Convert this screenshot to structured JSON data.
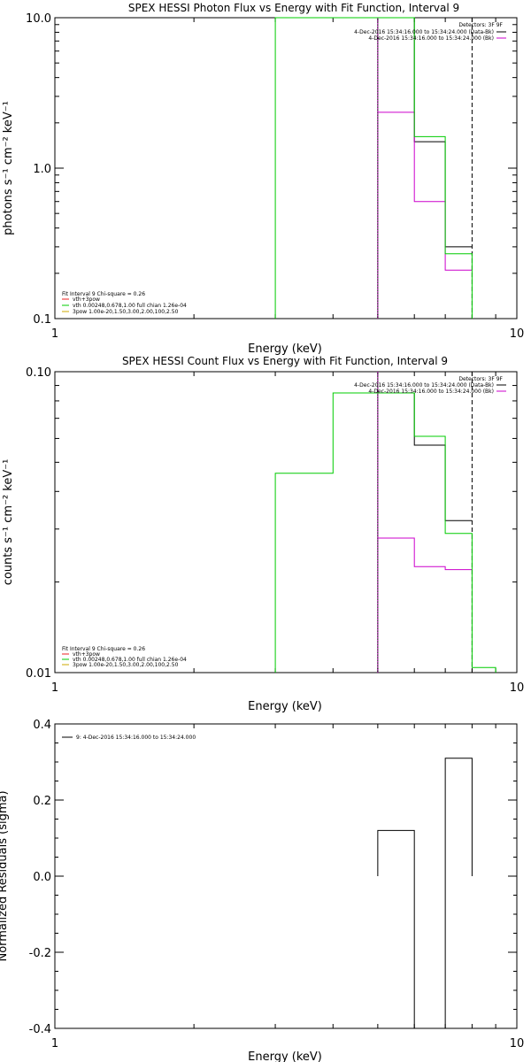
{
  "chart_data": [
    {
      "type": "line",
      "title": "SPEX HESSI Photon Flux vs Energy with Fit Function, Interval 9",
      "xlabel": "Energy (keV)",
      "ylabel": "photons s⁻¹ cm⁻² keV⁻¹",
      "xlog": true,
      "ylog": true,
      "xlim": [
        1,
        10
      ],
      "ylim": [
        0.1,
        10
      ],
      "xticks": [
        {
          "v": 1,
          "label": "1"
        },
        {
          "v": 10,
          "label": "10"
        }
      ],
      "yticks": [
        {
          "v": 0.1,
          "label": "0.1"
        },
        {
          "v": 1,
          "label": "1.0"
        },
        {
          "v": 10,
          "label": "10.0"
        }
      ],
      "header": {
        "detectors": "Detectors: 3F 9F",
        "lines": [
          {
            "text": "4-Dec-2016 15:34:16.000 to 15:34:24.000 (Data-Bk)",
            "color": "#000000"
          },
          {
            "text": "4-Dec-2016 15:34:16.000 to 15:34:24.000 (Bk)",
            "color": "#cc00cc"
          }
        ]
      },
      "fit_legend": {
        "title": "Fit Interval 9   Chi-square = 0.26",
        "entries": [
          {
            "text": "vth+3pow",
            "color": "#ee2222"
          },
          {
            "text": "vth 0.00248,0.678,1.00  full chian 1.26e-04",
            "color": "#00cc00"
          },
          {
            "text": "3pow 1.00e-20,1.50,3.00,2.00,100,2.50",
            "color": "#ccaa00"
          }
        ]
      },
      "series": [
        {
          "color": "#000000",
          "style": "solid",
          "x": [
            5.0,
            6.0,
            6.0,
            7.0,
            7.0,
            8.0
          ],
          "y": [
            10,
            10,
            1.5,
            1.5,
            0.3,
            0.3
          ]
        },
        {
          "color": "#cc00cc",
          "style": "solid",
          "x": [
            5.0,
            6.0,
            6.0,
            7.0,
            7.0,
            8.0
          ],
          "y": [
            2.35,
            2.35,
            0.6,
            0.6,
            0.21,
            0.21
          ]
        },
        {
          "color": "#00cc00",
          "style": "solid",
          "x": [
            3.0,
            3.0,
            5.0,
            6.0,
            6.0,
            7.0,
            7.0,
            8.0,
            8.0
          ],
          "y": [
            0.1,
            10,
            10,
            10,
            1.62,
            1.62,
            0.27,
            0.27,
            0.1
          ]
        }
      ],
      "vlines": [
        {
          "x": 5.0,
          "color": "#000000",
          "style": "solid"
        },
        {
          "x": 5.0,
          "color": "#cc00cc",
          "style": "dotted"
        },
        {
          "x": 8.0,
          "color": "#000000",
          "style": "dashed"
        }
      ]
    },
    {
      "type": "line",
      "title": "SPEX HESSI Count Flux vs Energy with Fit Function, Interval 9",
      "xlabel": "Energy (keV)",
      "ylabel": "counts s⁻¹ cm⁻² keV⁻¹",
      "xlog": true,
      "ylog": true,
      "xlim": [
        1,
        10
      ],
      "ylim": [
        0.01,
        0.1
      ],
      "xticks": [
        {
          "v": 1,
          "label": "1"
        },
        {
          "v": 10,
          "label": "10"
        }
      ],
      "yticks": [
        {
          "v": 0.01,
          "label": "0.01"
        },
        {
          "v": 0.1,
          "label": "0.10"
        }
      ],
      "header": {
        "detectors": "Detectors: 3F 9F",
        "lines": [
          {
            "text": "4-Dec-2016 15:34:16.000 to 15:34:24.000 (Data-Bk)",
            "color": "#000000"
          },
          {
            "text": "4-Dec-2016 15:34:16.000 to 15:34:24.000 (Bk)",
            "color": "#cc00cc"
          }
        ]
      },
      "fit_legend": {
        "title": "Fit Interval 9   Chi-square = 0.26",
        "entries": [
          {
            "text": "vth+3pow",
            "color": "#ee2222"
          },
          {
            "text": "vth 0.00248,0.678,1.00  full chian 1.26e-04",
            "color": "#00cc00"
          },
          {
            "text": "3pow 1.00e-20,1.50,3.00,2.00,100,2.50",
            "color": "#ccaa00"
          }
        ]
      },
      "series": [
        {
          "color": "#000000",
          "style": "solid",
          "x": [
            5.0,
            6.0,
            6.0,
            7.0,
            7.0,
            8.0
          ],
          "y": [
            0.085,
            0.085,
            0.057,
            0.057,
            0.032,
            0.032
          ]
        },
        {
          "color": "#cc00cc",
          "style": "solid",
          "x": [
            5.0,
            6.0,
            6.0,
            7.0,
            7.0,
            8.0
          ],
          "y": [
            0.028,
            0.028,
            0.0225,
            0.0225,
            0.022,
            0.022
          ]
        },
        {
          "color": "#00cc00",
          "style": "solid",
          "x": [
            3.0,
            3.0,
            4.0,
            4.0,
            5.0,
            6.0,
            6.0,
            7.0,
            7.0,
            8.0,
            8.0,
            9.0,
            9.0
          ],
          "y": [
            0.01,
            0.046,
            0.046,
            0.085,
            0.085,
            0.085,
            0.061,
            0.061,
            0.029,
            0.029,
            0.0104,
            0.0104,
            0.01
          ]
        }
      ],
      "vlines": [
        {
          "x": 5.0,
          "color": "#000000",
          "style": "solid"
        },
        {
          "x": 5.0,
          "color": "#cc00cc",
          "style": "dotted"
        },
        {
          "x": 8.0,
          "color": "#000000",
          "style": "dashed"
        }
      ]
    },
    {
      "type": "bar",
      "title": "",
      "xlabel": "Energy (keV)",
      "ylabel": "Normalized Residuals (sigma)",
      "xlog": true,
      "ylog": false,
      "xlim": [
        1,
        10
      ],
      "ylim": [
        -0.4,
        0.4
      ],
      "xticks": [
        {
          "v": 1,
          "label": "1"
        },
        {
          "v": 10,
          "label": "10"
        }
      ],
      "yticks": [
        {
          "v": -0.4,
          "label": "-0.4"
        },
        {
          "v": -0.2,
          "label": "-0.2"
        },
        {
          "v": 0,
          "label": "0.0"
        },
        {
          "v": 0.2,
          "label": "0.2"
        },
        {
          "v": 0.4,
          "label": "0.4"
        }
      ],
      "legend": {
        "text": "9:  4-Dec-2016 15:34:16.000 to 15:34:24.000",
        "color": "#000000"
      },
      "bins": [
        [
          5.0,
          6.0
        ],
        [
          6.0,
          7.0
        ],
        [
          7.0,
          8.0
        ]
      ],
      "values": [
        0.12,
        -0.4,
        0.31
      ]
    }
  ]
}
